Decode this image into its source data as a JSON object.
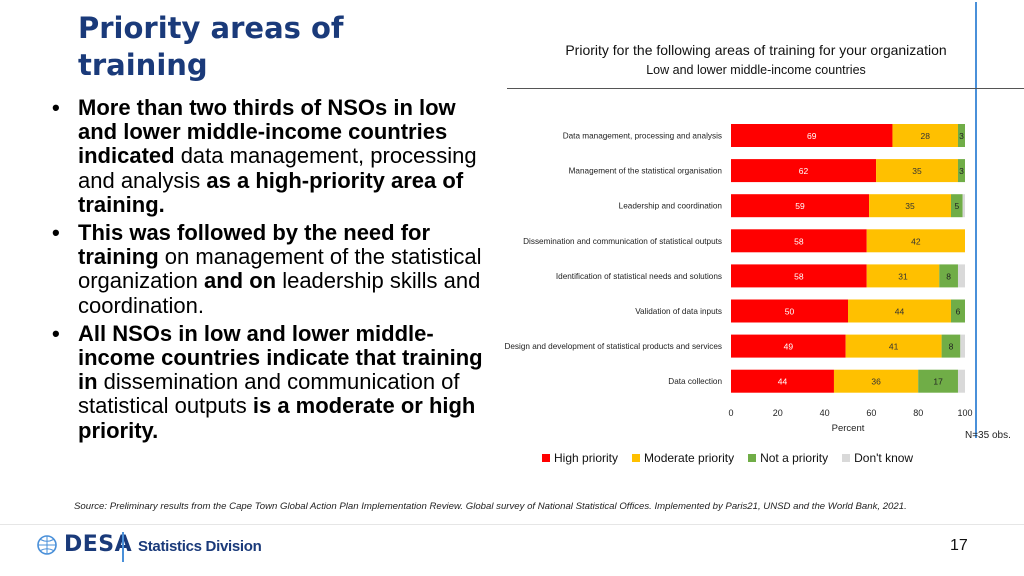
{
  "slide": {
    "title_line1": "Priority areas of",
    "title_line2": "training",
    "bullets": [
      [
        {
          "t": "More than two thirds of NSOs in low and lower middle-income countries indicated ",
          "b": true
        },
        {
          "t": "data management, processing and analysis ",
          "b": false
        },
        {
          "t": "as a high-priority area of training.",
          "b": true
        }
      ],
      [
        {
          "t": "This was followed by the need for training ",
          "b": true
        },
        {
          "t": "on management of the statistical organization ",
          "b": false
        },
        {
          "t": "and on ",
          "b": true
        },
        {
          "t": "leadership skills and coordination.",
          "b": false
        }
      ],
      [
        {
          "t": "All NSOs in low and lower middle-income countries indicate that training in ",
          "b": true
        },
        {
          "t": "dissemination and communication of statistical outputs ",
          "b": false
        },
        {
          "t": "is a moderate or high priority.",
          "b": true
        }
      ]
    ],
    "note": "N=35 obs.",
    "source": "Source: Preliminary results from the  Cape Town Global Action Plan Implementation Review. Global survey of National Statistical Offices. Implemented by Paris21, UNSD and the World Bank, 2021.",
    "logo_text": "DESA",
    "division": "Statistics Division",
    "page_number": "17"
  },
  "chart_data": {
    "type": "bar",
    "orientation": "horizontal",
    "stacked": true,
    "title": "Priority for the following areas of training for your organization",
    "subtitle": "Low and lower middle-income countries",
    "categories": [
      "Data management, processing and analysis",
      "Management of the statistical organisation",
      "Leadership and coordination",
      "Dissemination and communication of statistical outputs",
      "Identification of statistical needs and solutions",
      "Validation of data inputs",
      "Design and development of statistical products and services",
      "Data collection"
    ],
    "series": [
      {
        "name": "High priority",
        "color": "#ff0000",
        "label_color": "#ffffff",
        "values": [
          69,
          62,
          59,
          58,
          58,
          50,
          49,
          44
        ]
      },
      {
        "name": "Moderate priority",
        "color": "#ffc000",
        "label_color": "#333333",
        "values": [
          28,
          35,
          35,
          42,
          31,
          44,
          41,
          36
        ]
      },
      {
        "name": "Not a priority",
        "color": "#70ad47",
        "label_color": "#222222",
        "values": [
          3,
          3,
          5,
          0,
          8,
          6,
          8,
          17
        ]
      },
      {
        "name": "Don't know",
        "color": "#d9d9d9",
        "label_color": "#222222",
        "values": [
          0,
          0,
          1,
          0,
          3,
          0,
          2,
          3
        ]
      }
    ],
    "value_labels": [
      [
        "69",
        "28",
        "3",
        ""
      ],
      [
        "62",
        "35",
        "3",
        ""
      ],
      [
        "59",
        "35",
        "5",
        ""
      ],
      [
        "58",
        "42",
        "",
        ""
      ],
      [
        "58",
        "31",
        "8",
        ""
      ],
      [
        "50",
        "44",
        "6",
        ""
      ],
      [
        "49",
        "41",
        "8",
        ""
      ],
      [
        "44",
        "36",
        "17",
        ""
      ]
    ],
    "xlim": [
      0,
      100
    ],
    "xticks": [
      "0",
      "20",
      "40",
      "60",
      "80",
      "100"
    ],
    "xlabel": "Percent",
    "grid": false,
    "legend_position": "bottom"
  }
}
